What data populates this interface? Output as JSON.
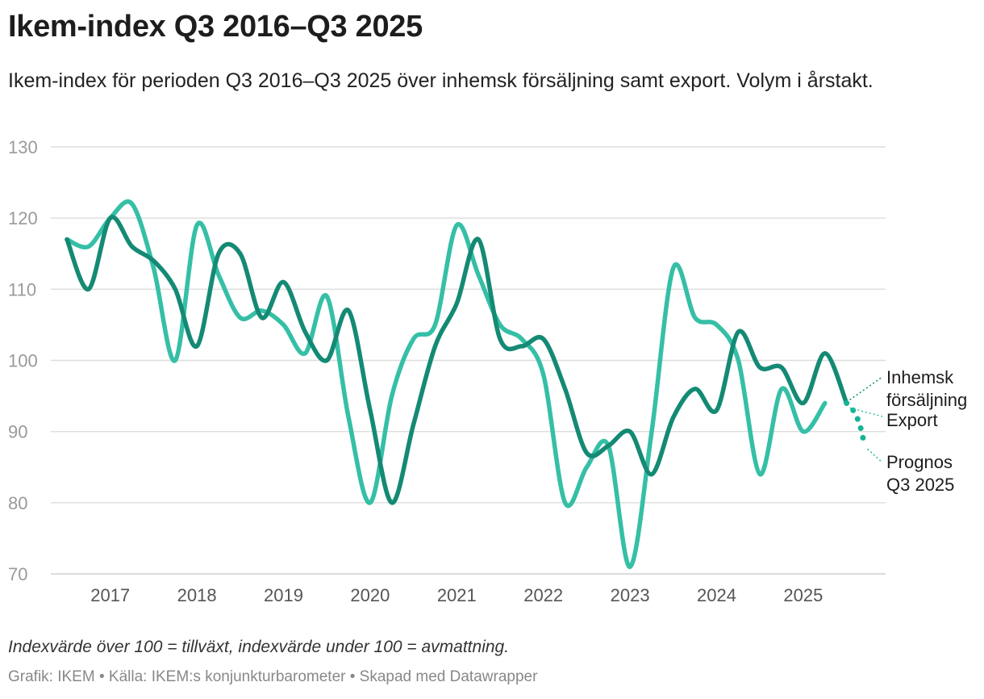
{
  "header": {
    "title": "Ikem-index Q3 2016–Q3 2025",
    "subtitle": "Ikem-index för perioden Q3 2016–Q3 2025 över inhemsk försäljning samt export. Volym i årstakt."
  },
  "footer": {
    "note": "Indexvärde över 100 = tillväxt, indexvärde under 100 = avmattning.",
    "source": "Grafik: IKEM • Källa: IKEM:s konjunkturbarometer • Skapad med Datawrapper"
  },
  "colors": {
    "inhemsk": "#148a74",
    "export": "#35bfa6",
    "prognos": "#16b394",
    "grid": "#dddddd"
  },
  "chart_data": {
    "type": "line",
    "x_start": "Q3 2016",
    "ylim": [
      70,
      130
    ],
    "y_ticks": [
      70,
      80,
      90,
      100,
      110,
      120,
      130
    ],
    "x_ticks": [
      "2017",
      "2018",
      "2019",
      "2020",
      "2021",
      "2022",
      "2023",
      "2024",
      "2025"
    ],
    "grid": true,
    "x": [
      "Q3 2016",
      "Q4 2016",
      "Q1 2017",
      "Q2 2017",
      "Q3 2017",
      "Q4 2017",
      "Q1 2018",
      "Q2 2018",
      "Q3 2018",
      "Q4 2018",
      "Q1 2019",
      "Q2 2019",
      "Q3 2019",
      "Q4 2019",
      "Q1 2020",
      "Q2 2020",
      "Q3 2020",
      "Q4 2020",
      "Q1 2021",
      "Q2 2021",
      "Q3 2021",
      "Q4 2021",
      "Q1 2022",
      "Q2 2022",
      "Q3 2022",
      "Q4 2022",
      "Q1 2023",
      "Q2 2023",
      "Q3 2023",
      "Q4 2023",
      "Q1 2024",
      "Q2 2024",
      "Q3 2024",
      "Q4 2024",
      "Q1 2025",
      "Q2 2025",
      "Q3 2025"
    ],
    "series": [
      {
        "name": "Export",
        "values": [
          117,
          116,
          120,
          122,
          113,
          100,
          119,
          112,
          106,
          107,
          105,
          101,
          109,
          92,
          80,
          95,
          103,
          105,
          119,
          112,
          105,
          103,
          98,
          80,
          85,
          88,
          71,
          90,
          113,
          106,
          105,
          100,
          84,
          96,
          90,
          94,
          null
        ]
      },
      {
        "name": "Inhemsk försäljning",
        "values": [
          117,
          110,
          120,
          116,
          114,
          110,
          102,
          115,
          115,
          106,
          111,
          104,
          100,
          107,
          93,
          80,
          91,
          102,
          108,
          117,
          103,
          102,
          103,
          96,
          87,
          88,
          90,
          84,
          92,
          96,
          93,
          104,
          99,
          99,
          94,
          101,
          94
        ]
      },
      {
        "name": "Prognos Q3 2025",
        "style": "dotted",
        "x": [
          "Q2 2025",
          "Q3 2025"
        ],
        "values": [
          94,
          88
        ]
      }
    ],
    "labels": {
      "inhemsk": [
        "Inhemsk",
        "försäljning"
      ],
      "export": "Export",
      "prognos": [
        "Prognos",
        "Q3 2025"
      ]
    }
  }
}
